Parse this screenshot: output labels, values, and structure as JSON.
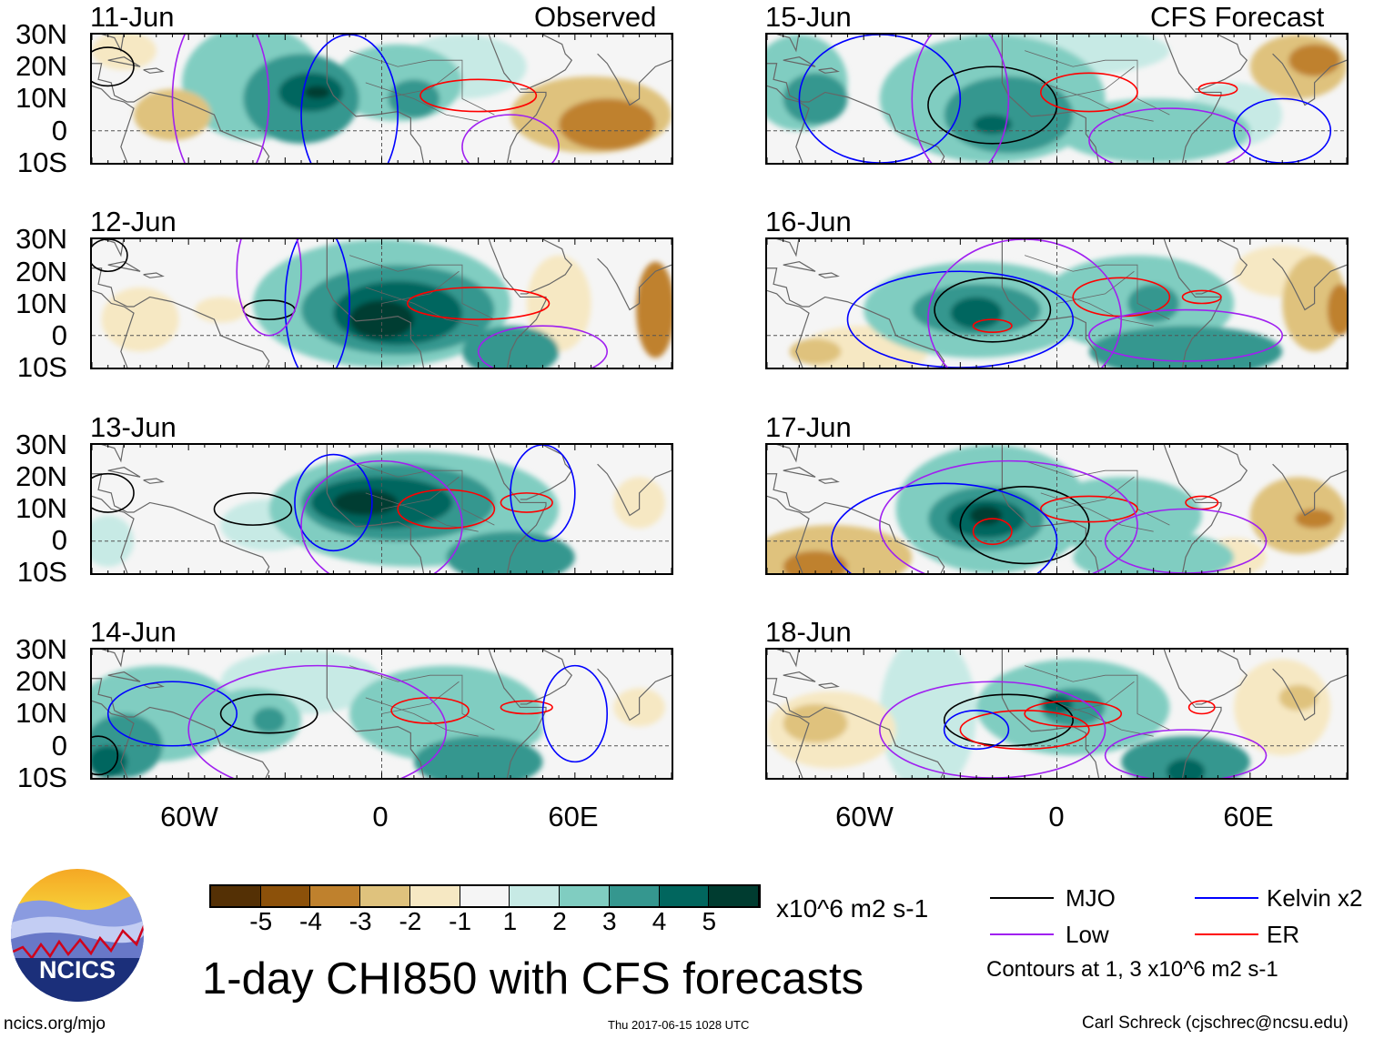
{
  "title": "1-day CHI850 with CFS forecasts",
  "timestamp": "Thu 2017-06-15 1028 UTC",
  "source_url": "ncics.org/mjo",
  "author": "Carl Schreck (cjschrec@ncsu.edu)",
  "logo_text": "NCICS",
  "column_labels": {
    "left": "Observed",
    "right": "CFS Forecast"
  },
  "lat_labels": [
    "30N",
    "20N",
    "10N",
    "0",
    "10S"
  ],
  "lon_labels": [
    "60W",
    "0",
    "60E"
  ],
  "colorbar": {
    "units": "x10^6 m2 s-1",
    "labels": [
      "-5",
      "-4",
      "-3",
      "-2",
      "-1",
      "1",
      "2",
      "3",
      "4",
      "5"
    ],
    "colors": [
      "#543005",
      "#8c510a",
      "#bf812d",
      "#dfc27d",
      "#f6e8c3",
      "#f5f5f5",
      "#c7eae5",
      "#80cdc1",
      "#35978f",
      "#01665e",
      "#003c30"
    ]
  },
  "legend": {
    "items": [
      {
        "label": "MJO",
        "color": "#000000"
      },
      {
        "label": "Kelvin x2",
        "color": "#0000ff"
      },
      {
        "label": "Low",
        "color": "#a020f0"
      },
      {
        "label": "ER",
        "color": "#ff0000"
      }
    ],
    "note": "Contours at 1, 3 x10^6 m2 s-1"
  },
  "panels": [
    {
      "date": "11-Jun",
      "blobs": [
        [
          -40,
          15,
          22,
          18,
          2
        ],
        [
          -25,
          10,
          18,
          14,
          3
        ],
        [
          -22,
          12,
          10,
          6,
          4
        ],
        [
          -20,
          12,
          4,
          2,
          5
        ],
        [
          5,
          15,
          20,
          12,
          2
        ],
        [
          10,
          10,
          8,
          6,
          3
        ],
        [
          25,
          20,
          20,
          10,
          1
        ],
        [
          65,
          5,
          25,
          12,
          -2
        ],
        [
          70,
          2,
          15,
          8,
          -3
        ],
        [
          -65,
          5,
          12,
          8,
          -2
        ],
        [
          -80,
          25,
          10,
          6,
          -1
        ]
      ],
      "contours": [
        [
          "mjo",
          -85,
          20,
          8,
          6
        ],
        [
          "er",
          30,
          11,
          18,
          5
        ],
        [
          "kelvin",
          -10,
          5,
          15,
          25
        ],
        [
          "low",
          -50,
          10,
          15,
          30
        ],
        [
          "low",
          40,
          -5,
          15,
          10
        ]
      ]
    },
    {
      "date": "12-Jun",
      "blobs": [
        [
          0,
          10,
          40,
          20,
          2
        ],
        [
          5,
          8,
          30,
          14,
          3
        ],
        [
          5,
          7,
          20,
          10,
          4
        ],
        [
          0,
          5,
          10,
          6,
          5
        ],
        [
          55,
          10,
          10,
          15,
          -1
        ],
        [
          85,
          8,
          6,
          15,
          -3
        ],
        [
          -75,
          5,
          12,
          10,
          -1
        ],
        [
          -50,
          8,
          8,
          4,
          -1
        ],
        [
          40,
          -5,
          15,
          8,
          3
        ]
      ],
      "contours": [
        [
          "mjo",
          -85,
          25,
          6,
          5
        ],
        [
          "mjo",
          -35,
          8,
          8,
          3
        ],
        [
          "er",
          30,
          10,
          22,
          5
        ],
        [
          "kelvin",
          -20,
          10,
          10,
          25
        ],
        [
          "low",
          -35,
          20,
          10,
          20
        ],
        [
          "low",
          50,
          -5,
          20,
          8
        ]
      ]
    },
    {
      "date": "13-Jun",
      "blobs": [
        [
          10,
          10,
          45,
          18,
          2
        ],
        [
          5,
          12,
          30,
          12,
          3
        ],
        [
          0,
          12,
          22,
          8,
          4
        ],
        [
          -5,
          12,
          10,
          4,
          5
        ],
        [
          40,
          -5,
          20,
          8,
          3
        ],
        [
          -35,
          5,
          15,
          8,
          1
        ],
        [
          80,
          12,
          8,
          8,
          -1
        ],
        [
          -85,
          0,
          8,
          8,
          1
        ]
      ],
      "contours": [
        [
          "mjo",
          -40,
          10,
          12,
          5
        ],
        [
          "mjo",
          -85,
          15,
          8,
          6
        ],
        [
          "er",
          20,
          10,
          15,
          6
        ],
        [
          "er",
          45,
          12,
          8,
          3
        ],
        [
          "kelvin",
          -15,
          12,
          12,
          15
        ],
        [
          "low",
          0,
          5,
          25,
          20
        ],
        [
          "kelvin",
          50,
          15,
          10,
          15
        ]
      ]
    },
    {
      "date": "14-Jun",
      "blobs": [
        [
          -70,
          10,
          25,
          15,
          2
        ],
        [
          -80,
          0,
          12,
          10,
          3
        ],
        [
          -85,
          -5,
          6,
          5,
          4
        ],
        [
          -40,
          8,
          15,
          10,
          2
        ],
        [
          -35,
          8,
          5,
          4,
          3
        ],
        [
          20,
          10,
          30,
          15,
          2
        ],
        [
          30,
          -5,
          20,
          8,
          3
        ],
        [
          40,
          5,
          10,
          6,
          2
        ],
        [
          80,
          12,
          8,
          6,
          -1
        ],
        [
          -25,
          20,
          25,
          10,
          1
        ]
      ],
      "contours": [
        [
          "mjo",
          -35,
          10,
          15,
          6
        ],
        [
          "mjo",
          -88,
          -3,
          6,
          6
        ],
        [
          "er",
          15,
          11,
          12,
          4
        ],
        [
          "er",
          45,
          12,
          8,
          2
        ],
        [
          "kelvin",
          -65,
          10,
          20,
          10
        ],
        [
          "low",
          -20,
          5,
          40,
          20
        ],
        [
          "kelvin",
          60,
          10,
          10,
          15
        ]
      ]
    },
    {
      "date": "15-Jun",
      "blobs": [
        [
          -80,
          15,
          15,
          15,
          2
        ],
        [
          -75,
          10,
          10,
          8,
          3
        ],
        [
          -20,
          10,
          35,
          20,
          2
        ],
        [
          -15,
          5,
          20,
          12,
          3
        ],
        [
          -20,
          2,
          6,
          3,
          4
        ],
        [
          30,
          0,
          30,
          10,
          2
        ],
        [
          55,
          5,
          15,
          10,
          1
        ],
        [
          75,
          20,
          15,
          10,
          -2
        ],
        [
          80,
          22,
          8,
          5,
          -3
        ],
        [
          0,
          25,
          35,
          8,
          1
        ]
      ],
      "contours": [
        [
          "mjo",
          -20,
          8,
          20,
          12
        ],
        [
          "er",
          10,
          12,
          15,
          6
        ],
        [
          "er",
          50,
          13,
          6,
          2
        ],
        [
          "kelvin",
          -55,
          10,
          25,
          20
        ],
        [
          "low",
          -30,
          10,
          15,
          25
        ],
        [
          "low",
          35,
          -3,
          25,
          10
        ],
        [
          "kelvin",
          70,
          0,
          15,
          10
        ]
      ]
    },
    {
      "date": "16-Jun",
      "blobs": [
        [
          -25,
          8,
          35,
          15,
          2
        ],
        [
          -25,
          8,
          20,
          8,
          3
        ],
        [
          -25,
          7,
          8,
          5,
          4
        ],
        [
          25,
          10,
          30,
          15,
          2
        ],
        [
          30,
          10,
          8,
          6,
          3
        ],
        [
          40,
          -5,
          30,
          8,
          3
        ],
        [
          80,
          10,
          10,
          15,
          -2
        ],
        [
          88,
          8,
          4,
          8,
          -3
        ],
        [
          -60,
          -5,
          20,
          8,
          -1
        ],
        [
          -75,
          -5,
          8,
          4,
          -2
        ],
        [
          70,
          20,
          15,
          8,
          -1
        ]
      ],
      "contours": [
        [
          "mjo",
          -20,
          8,
          18,
          10
        ],
        [
          "er",
          -20,
          3,
          6,
          2
        ],
        [
          "er",
          20,
          12,
          15,
          6
        ],
        [
          "er",
          45,
          12,
          6,
          2
        ],
        [
          "kelvin",
          -30,
          5,
          35,
          15
        ],
        [
          "low",
          -10,
          5,
          30,
          25
        ],
        [
          "low",
          40,
          0,
          30,
          8
        ]
      ]
    },
    {
      "date": "17-Jun",
      "blobs": [
        [
          -20,
          10,
          30,
          20,
          2
        ],
        [
          -22,
          7,
          18,
          10,
          3
        ],
        [
          -22,
          7,
          12,
          6,
          4
        ],
        [
          -22,
          8,
          5,
          3,
          5
        ],
        [
          20,
          8,
          25,
          12,
          2
        ],
        [
          30,
          -5,
          25,
          8,
          2
        ],
        [
          -70,
          -5,
          25,
          10,
          -2
        ],
        [
          -75,
          -8,
          10,
          5,
          -3
        ],
        [
          75,
          8,
          15,
          12,
          -2
        ],
        [
          80,
          7,
          6,
          3,
          -3
        ],
        [
          55,
          -5,
          10,
          6,
          -1
        ]
      ],
      "contours": [
        [
          "mjo",
          -10,
          5,
          20,
          12
        ],
        [
          "er",
          -20,
          3,
          6,
          4
        ],
        [
          "er",
          10,
          10,
          15,
          4
        ],
        [
          "er",
          45,
          12,
          5,
          2
        ],
        [
          "kelvin",
          -35,
          0,
          35,
          18
        ],
        [
          "low",
          -15,
          5,
          40,
          20
        ],
        [
          "low",
          40,
          0,
          25,
          10
        ]
      ]
    },
    {
      "date": "18-Jun",
      "blobs": [
        [
          5,
          12,
          30,
          15,
          2
        ],
        [
          5,
          12,
          10,
          6,
          3
        ],
        [
          0,
          13,
          5,
          3,
          4
        ],
        [
          -40,
          10,
          15,
          25,
          1
        ],
        [
          -70,
          5,
          20,
          12,
          -1
        ],
        [
          -75,
          7,
          10,
          6,
          -2
        ],
        [
          40,
          -5,
          20,
          8,
          3
        ],
        [
          40,
          -8,
          6,
          4,
          4
        ],
        [
          70,
          12,
          15,
          15,
          -1
        ],
        [
          75,
          15,
          6,
          4,
          -2
        ]
      ],
      "contours": [
        [
          "mjo",
          -15,
          8,
          20,
          8
        ],
        [
          "er",
          -10,
          5,
          20,
          6
        ],
        [
          "er",
          5,
          10,
          15,
          4
        ],
        [
          "er",
          45,
          12,
          4,
          2
        ],
        [
          "kelvin",
          -25,
          5,
          10,
          6
        ],
        [
          "low",
          -20,
          5,
          35,
          15
        ],
        [
          "low",
          40,
          -3,
          25,
          8
        ]
      ]
    }
  ]
}
